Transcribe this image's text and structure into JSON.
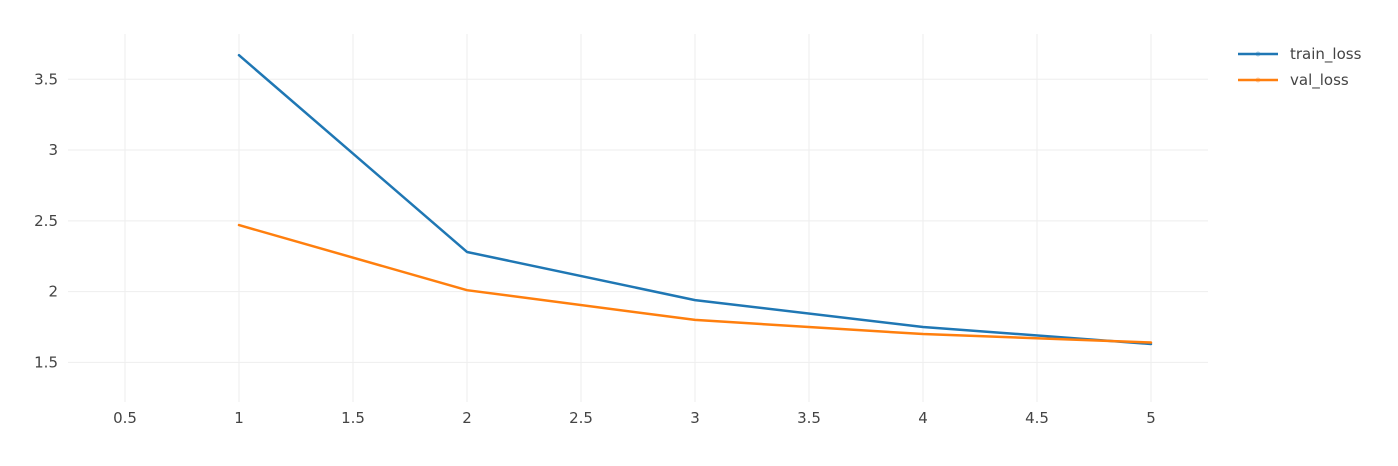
{
  "chart_data": {
    "type": "line",
    "title": "",
    "xlabel": "",
    "ylabel": "",
    "x": [
      1,
      2,
      3,
      4,
      5
    ],
    "series": [
      {
        "name": "train_loss",
        "values": [
          3.67,
          2.28,
          1.94,
          1.75,
          1.63
        ],
        "color": "#1f77b4"
      },
      {
        "name": "val_loss",
        "values": [
          2.47,
          2.01,
          1.8,
          1.7,
          1.64
        ],
        "color": "#ff7f0e"
      }
    ],
    "xlim": [
      0.25,
      5.25
    ],
    "ylim": [
      1.22,
      3.82
    ],
    "xticks": [
      0.5,
      1,
      1.5,
      2,
      2.5,
      3,
      3.5,
      4,
      4.5,
      5
    ],
    "xtick_labels": [
      "0.5",
      "1",
      "1.5",
      "2",
      "2.5",
      "3",
      "3.5",
      "4",
      "4.5",
      "5"
    ],
    "yticks": [
      1.5,
      2,
      2.5,
      3,
      3.5
    ],
    "ytick_labels": [
      "1.5",
      "2",
      "2.5",
      "3",
      "3.5"
    ],
    "grid": true,
    "legend_position": "top-right",
    "grid_color": "#eeeeee",
    "text_color": "#444444"
  }
}
